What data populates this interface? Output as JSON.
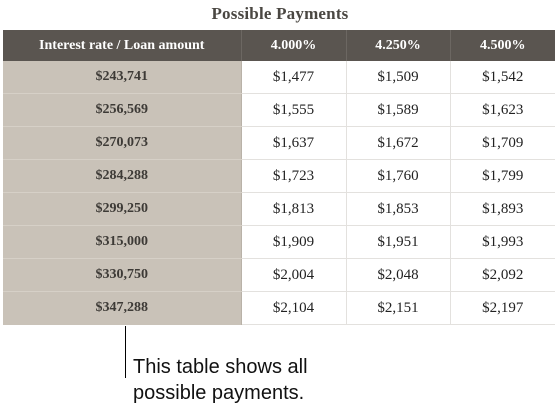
{
  "table": {
    "title": "Possible Payments",
    "header": {
      "corner": "Interest rate / Loan amount",
      "rates": [
        "4.000%",
        "4.250%",
        "4.500%"
      ]
    },
    "rows": [
      {
        "amount": "$243,741",
        "payments": [
          "$1,477",
          "$1,509",
          "$1,542"
        ]
      },
      {
        "amount": "$256,569",
        "payments": [
          "$1,555",
          "$1,589",
          "$1,623"
        ]
      },
      {
        "amount": "$270,073",
        "payments": [
          "$1,637",
          "$1,672",
          "$1,709"
        ]
      },
      {
        "amount": "$284,288",
        "payments": [
          "$1,723",
          "$1,760",
          "$1,799"
        ]
      },
      {
        "amount": "$299,250",
        "payments": [
          "$1,813",
          "$1,853",
          "$1,893"
        ]
      },
      {
        "amount": "$315,000",
        "payments": [
          "$1,909",
          "$1,951",
          "$1,993"
        ]
      },
      {
        "amount": "$330,750",
        "payments": [
          "$2,004",
          "$2,048",
          "$2,092"
        ]
      },
      {
        "amount": "$347,288",
        "payments": [
          "$2,104",
          "$2,151",
          "$2,197"
        ]
      }
    ]
  },
  "callout": {
    "line1": "This table shows all",
    "line2": "possible payments."
  },
  "colors": {
    "header_bg": "#5a5550",
    "amount_column_bg": "#c9c2b8",
    "title_text": "#4a4742"
  }
}
